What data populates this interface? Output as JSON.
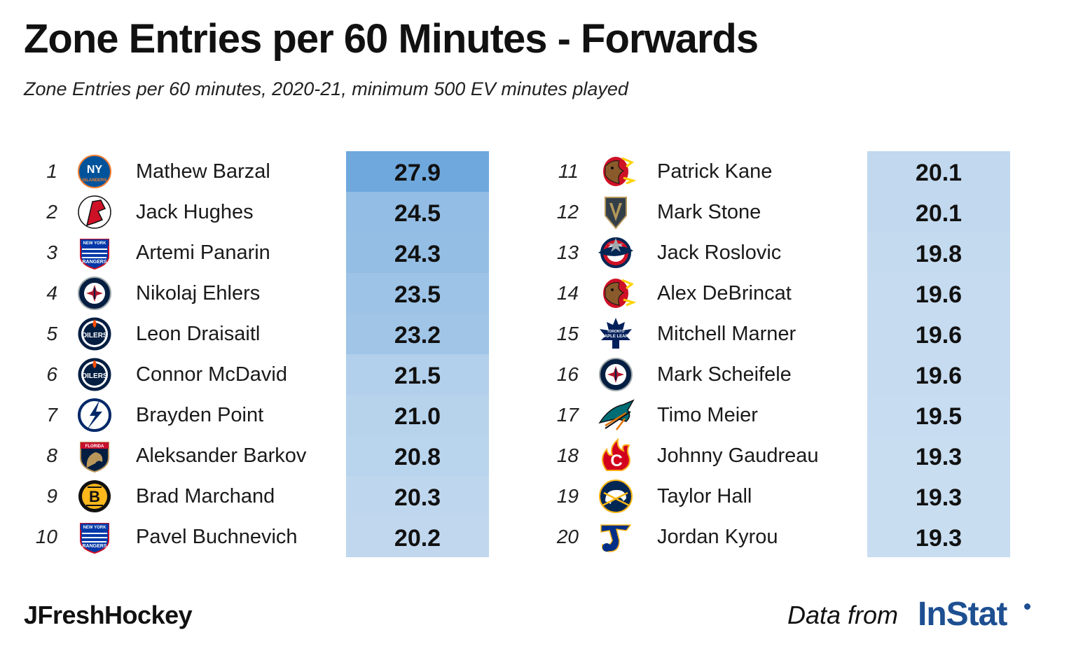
{
  "chart_data": {
    "type": "table",
    "title": "Zone Entries per 60 Minutes - Forwards",
    "subtitle": "Zone Entries per 60 minutes, 2020-21, minimum 500 EV minutes played",
    "value_min": 19.3,
    "value_max": 27.9,
    "rows": [
      {
        "rank": "1",
        "player": "Mathew Barzal",
        "team": "Islanders",
        "value": 27.9
      },
      {
        "rank": "2",
        "player": "Jack Hughes",
        "team": "Devils",
        "value": 24.5
      },
      {
        "rank": "3",
        "player": "Artemi Panarin",
        "team": "Rangers",
        "value": 24.3
      },
      {
        "rank": "4",
        "player": "Nikolaj Ehlers",
        "team": "Jets",
        "value": 23.5
      },
      {
        "rank": "5",
        "player": "Leon Draisaitl",
        "team": "Oilers",
        "value": 23.2
      },
      {
        "rank": "6",
        "player": "Connor McDavid",
        "team": "Oilers",
        "value": 21.5
      },
      {
        "rank": "7",
        "player": "Brayden Point",
        "team": "Lightning",
        "value": 21.0
      },
      {
        "rank": "8",
        "player": "Aleksander Barkov",
        "team": "Panthers",
        "value": 20.8
      },
      {
        "rank": "9",
        "player": "Brad Marchand",
        "team": "Bruins",
        "value": 20.3
      },
      {
        "rank": "10",
        "player": "Pavel Buchnevich",
        "team": "Rangers",
        "value": 20.2
      },
      {
        "rank": "11",
        "player": "Patrick Kane",
        "team": "Blackhawks",
        "value": 20.1
      },
      {
        "rank": "12",
        "player": "Mark Stone",
        "team": "Golden Knights",
        "value": 20.1
      },
      {
        "rank": "13",
        "player": "Jack Roslovic",
        "team": "Blue Jackets",
        "value": 19.8
      },
      {
        "rank": "14",
        "player": "Alex DeBrincat",
        "team": "Blackhawks",
        "value": 19.6
      },
      {
        "rank": "15",
        "player": "Mitchell Marner",
        "team": "Maple Leafs",
        "value": 19.6
      },
      {
        "rank": "16",
        "player": "Mark Scheifele",
        "team": "Jets",
        "value": 19.6
      },
      {
        "rank": "17",
        "player": "Timo Meier",
        "team": "Sharks",
        "value": 19.5
      },
      {
        "rank": "18",
        "player": "Johnny Gaudreau",
        "team": "Flames",
        "value": 19.3
      },
      {
        "rank": "19",
        "player": "Taylor Hall",
        "team": "Sabres",
        "value": 19.3
      },
      {
        "rank": "20",
        "player": "Jordan Kyrou",
        "team": "Blues",
        "value": 19.3
      }
    ],
    "color_low": "#c9ddf0",
    "color_high": "#6fa8dc"
  },
  "logo_text": {
    "Islanders": "NY ISLANDERS",
    "Rangers": "NEW YORK RANGERS",
    "Oilers": "OILERS",
    "Panthers": "FLORIDA",
    "Maple Leafs": "TORONTO MAPLE LEAFS"
  },
  "footer": {
    "credit": "JFreshHockey",
    "data_from": "Data from",
    "source": "InStat"
  }
}
